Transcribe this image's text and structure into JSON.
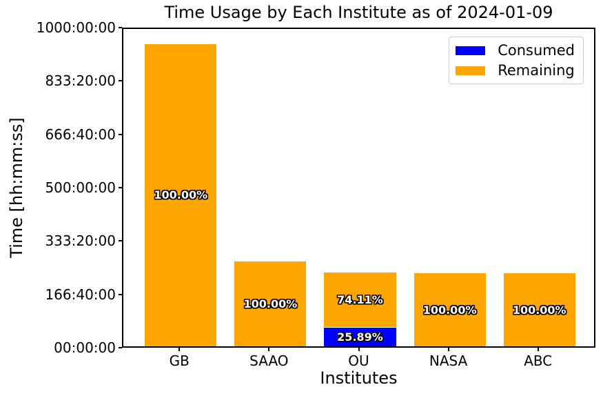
{
  "figure": {
    "background": "#ffffff"
  },
  "chart_data": {
    "type": "bar",
    "stacked": true,
    "title": "Time Usage by Each Institute as of 2024-01-09",
    "xlabel": "Institutes",
    "ylabel": "Time [hh:mm:ss]",
    "categories": [
      "GB",
      "SAAO",
      "OU",
      "NASA",
      "ABC"
    ],
    "series": [
      {
        "name": "Consumed",
        "color": "#0000ff",
        "values_hours": [
          0,
          0,
          59,
          0,
          0
        ],
        "bar_labels": [
          "",
          "",
          "25.89%",
          "",
          ""
        ]
      },
      {
        "name": "Remaining",
        "color": "#ffa500",
        "values_hours": [
          945,
          266,
          169,
          228,
          228
        ],
        "bar_labels": [
          "100.00%",
          "100.00%",
          "74.11%",
          "100.00%",
          "100.00%"
        ]
      }
    ],
    "ylim_hours": [
      0,
      1000
    ],
    "ytick_labels": [
      "00:00:00",
      "166:40:00",
      "333:20:00",
      "500:00:00",
      "666:40:00",
      "833:20:00",
      "1000:00:00"
    ],
    "legend_position": "upper right",
    "grid": false,
    "bar_label_style": {
      "color": "#ffffff",
      "outline": "#000000"
    }
  }
}
